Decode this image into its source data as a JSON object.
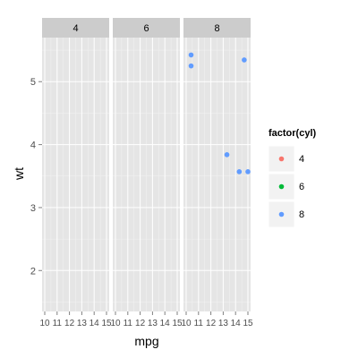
{
  "chart_data": {
    "type": "scatter",
    "facet_var": "cyl",
    "panels": [
      "4",
      "6",
      "8"
    ],
    "xlabel": "mpg",
    "ylabel": "wt",
    "xlim": [
      10,
      15
    ],
    "ylim": [
      1.35,
      5.7
    ],
    "x_ticks": [
      10,
      11,
      12,
      13,
      14,
      15
    ],
    "x_tick_labels": [
      "10",
      "11",
      "12",
      "13",
      "14",
      "15"
    ],
    "y_ticks": [
      2,
      3,
      4,
      5
    ],
    "y_tick_labels": [
      "2",
      "3",
      "4",
      "5"
    ],
    "grid": true,
    "legend": {
      "title": "factor(cyl)",
      "position": "right",
      "items": [
        {
          "label": "4",
          "color": "#F8766D"
        },
        {
          "label": "6",
          "color": "#00BA38"
        },
        {
          "label": "8",
          "color": "#619CFF"
        }
      ]
    },
    "points": [
      {
        "panel": "8",
        "cyl": "8",
        "x": 10.4,
        "y": 5.424
      },
      {
        "panel": "8",
        "cyl": "8",
        "x": 10.4,
        "y": 5.25
      },
      {
        "panel": "8",
        "cyl": "8",
        "x": 14.7,
        "y": 5.345
      },
      {
        "panel": "8",
        "cyl": "8",
        "x": 13.3,
        "y": 3.84
      },
      {
        "panel": "8",
        "cyl": "8",
        "x": 14.3,
        "y": 3.57
      },
      {
        "panel": "8",
        "cyl": "8",
        "x": 15.0,
        "y": 3.57
      }
    ]
  }
}
